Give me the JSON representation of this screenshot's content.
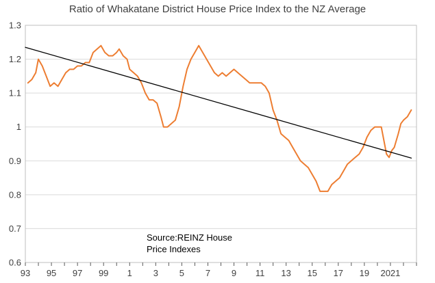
{
  "chart_data": {
    "type": "line",
    "title": "Ratio of Whakatane District House Price Index to the NZ Average",
    "xlabel": "",
    "ylabel": "",
    "x_range": [
      1993,
      2023
    ],
    "ylim": [
      0.6,
      1.3
    ],
    "y_ticks": [
      "0.6",
      "0.7",
      "0.8",
      "0.9",
      "1",
      "1.1",
      "1.2",
      "1.3"
    ],
    "x_tick_labels": [
      {
        "x": 1993,
        "label": "93"
      },
      {
        "x": 1995,
        "label": "95"
      },
      {
        "x": 1997,
        "label": "97"
      },
      {
        "x": 1999,
        "label": "99"
      },
      {
        "x": 2001,
        "label": "1"
      },
      {
        "x": 2003,
        "label": "3"
      },
      {
        "x": 2005,
        "label": "5"
      },
      {
        "x": 2007,
        "label": "7"
      },
      {
        "x": 2009,
        "label": "9"
      },
      {
        "x": 2011,
        "label": "11"
      },
      {
        "x": 2013,
        "label": "13"
      },
      {
        "x": 2015,
        "label": "15"
      },
      {
        "x": 2017,
        "label": "17"
      },
      {
        "x": 2019,
        "label": "19"
      },
      {
        "x": 2021,
        "label": "2021"
      }
    ],
    "grid": true,
    "annotation": [
      "Source:REINZ House",
      "Price Indexes"
    ],
    "series": [
      {
        "color": "#ED7D31",
        "points": [
          [
            1993.2,
            1.13
          ],
          [
            1993.5,
            1.14
          ],
          [
            1993.8,
            1.16
          ],
          [
            1994.0,
            1.2
          ],
          [
            1994.3,
            1.18
          ],
          [
            1994.6,
            1.15
          ],
          [
            1994.9,
            1.12
          ],
          [
            1995.2,
            1.13
          ],
          [
            1995.5,
            1.12
          ],
          [
            1995.8,
            1.14
          ],
          [
            1996.1,
            1.16
          ],
          [
            1996.4,
            1.17
          ],
          [
            1996.7,
            1.17
          ],
          [
            1997.0,
            1.18
          ],
          [
            1997.3,
            1.18
          ],
          [
            1997.6,
            1.19
          ],
          [
            1997.9,
            1.19
          ],
          [
            1998.2,
            1.22
          ],
          [
            1998.5,
            1.23
          ],
          [
            1998.8,
            1.24
          ],
          [
            1999.1,
            1.22
          ],
          [
            1999.4,
            1.21
          ],
          [
            1999.7,
            1.21
          ],
          [
            2000.0,
            1.22
          ],
          [
            2000.2,
            1.23
          ],
          [
            2000.5,
            1.21
          ],
          [
            2000.8,
            1.2
          ],
          [
            2001.0,
            1.17
          ],
          [
            2001.3,
            1.16
          ],
          [
            2001.6,
            1.15
          ],
          [
            2001.9,
            1.13
          ],
          [
            2002.2,
            1.1
          ],
          [
            2002.5,
            1.08
          ],
          [
            2002.8,
            1.08
          ],
          [
            2003.1,
            1.07
          ],
          [
            2003.4,
            1.03
          ],
          [
            2003.6,
            1.0
          ],
          [
            2003.9,
            1.0
          ],
          [
            2004.2,
            1.01
          ],
          [
            2004.5,
            1.02
          ],
          [
            2004.8,
            1.06
          ],
          [
            2005.1,
            1.12
          ],
          [
            2005.4,
            1.17
          ],
          [
            2005.7,
            1.2
          ],
          [
            2006.0,
            1.22
          ],
          [
            2006.3,
            1.24
          ],
          [
            2006.6,
            1.22
          ],
          [
            2006.9,
            1.2
          ],
          [
            2007.2,
            1.18
          ],
          [
            2007.5,
            1.16
          ],
          [
            2007.8,
            1.15
          ],
          [
            2008.1,
            1.16
          ],
          [
            2008.4,
            1.15
          ],
          [
            2008.7,
            1.16
          ],
          [
            2009.0,
            1.17
          ],
          [
            2009.3,
            1.16
          ],
          [
            2009.6,
            1.15
          ],
          [
            2009.9,
            1.14
          ],
          [
            2010.2,
            1.13
          ],
          [
            2010.5,
            1.13
          ],
          [
            2010.8,
            1.13
          ],
          [
            2011.1,
            1.13
          ],
          [
            2011.4,
            1.12
          ],
          [
            2011.7,
            1.1
          ],
          [
            2012.0,
            1.05
          ],
          [
            2012.3,
            1.02
          ],
          [
            2012.6,
            0.98
          ],
          [
            2012.9,
            0.97
          ],
          [
            2013.2,
            0.96
          ],
          [
            2013.5,
            0.94
          ],
          [
            2013.8,
            0.92
          ],
          [
            2014.1,
            0.9
          ],
          [
            2014.4,
            0.89
          ],
          [
            2014.7,
            0.88
          ],
          [
            2015.0,
            0.86
          ],
          [
            2015.3,
            0.84
          ],
          [
            2015.6,
            0.81
          ],
          [
            2015.9,
            0.81
          ],
          [
            2016.2,
            0.81
          ],
          [
            2016.5,
            0.83
          ],
          [
            2016.8,
            0.84
          ],
          [
            2017.1,
            0.85
          ],
          [
            2017.4,
            0.87
          ],
          [
            2017.7,
            0.89
          ],
          [
            2018.0,
            0.9
          ],
          [
            2018.3,
            0.91
          ],
          [
            2018.6,
            0.92
          ],
          [
            2018.9,
            0.94
          ],
          [
            2019.2,
            0.97
          ],
          [
            2019.5,
            0.99
          ],
          [
            2019.8,
            1.0
          ],
          [
            2020.1,
            1.0
          ],
          [
            2020.3,
            1.0
          ],
          [
            2020.5,
            0.96
          ],
          [
            2020.7,
            0.92
          ],
          [
            2020.9,
            0.91
          ],
          [
            2021.1,
            0.93
          ],
          [
            2021.3,
            0.94
          ],
          [
            2021.6,
            0.98
          ],
          [
            2021.8,
            1.01
          ],
          [
            2022.0,
            1.02
          ],
          [
            2022.3,
            1.03
          ],
          [
            2022.6,
            1.05
          ]
        ]
      },
      {
        "color": "#000000",
        "points": [
          [
            1993.0,
            1.235
          ],
          [
            2022.6,
            0.908
          ]
        ]
      }
    ]
  }
}
